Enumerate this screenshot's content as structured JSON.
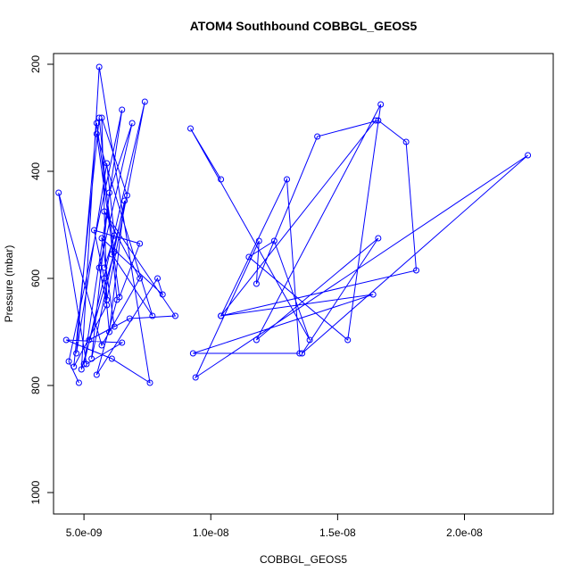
{
  "chart_data": {
    "type": "line",
    "title": "ATOM4 Southbound COBBGL_GEOS5",
    "xlabel": "COBBGL_GEOS5",
    "ylabel": "Pressure (mbar)",
    "xlim": [
      3.8e-09,
      2.35e-08
    ],
    "ylim": [
      1040,
      180
    ],
    "y_reversed": true,
    "x_ticks": [
      {
        "value": 5e-09,
        "label": "5.0e-09"
      },
      {
        "value": 1e-08,
        "label": "1.0e-08"
      },
      {
        "value": 1.5e-08,
        "label": "1.5e-08"
      },
      {
        "value": 2e-08,
        "label": "2.0e-08"
      }
    ],
    "y_ticks": [
      {
        "value": 200,
        "label": "200"
      },
      {
        "value": 400,
        "label": "400"
      },
      {
        "value": 600,
        "label": "600"
      },
      {
        "value": 800,
        "label": "800"
      },
      {
        "value": 1000,
        "label": "1000"
      }
    ],
    "series": [
      {
        "color": "#0000ff",
        "marker": "open-circle",
        "x": [
          4.8e-09,
          4.4e-09,
          6.5e-09,
          5e-09,
          7.4e-09,
          5.9e-09,
          5.7e-09,
          6.7e-09,
          6.1e-09,
          7.7e-09,
          5.5e-09,
          6.4e-09,
          7.2e-09,
          5.4e-09,
          5.8e-09,
          6e-09,
          6.6e-09,
          5.3e-09,
          6e-09,
          6.9e-09,
          5.6e-09,
          5.9e-09,
          4.6e-09,
          5.6e-09,
          6.3e-09,
          5.5e-09,
          7.9e-09,
          8.1e-09,
          5.7e-09,
          6.2e-09,
          5.2e-09,
          6.8e-09,
          8.6e-09,
          5.8e-09,
          7.2e-09,
          5.7e-09,
          4e-09,
          5.1e-09,
          6.5e-09,
          4.3e-09,
          6.1e-09,
          7.6e-09,
          5.6e-09,
          4.9e-09,
          6.2e-09,
          5.5e-09,
          4.7e-09,
          5.9e-09,
          6.2e-09,
          5.8e-09
        ],
        "y": [
          795,
          755,
          285,
          760,
          270,
          640,
          300,
          445,
          555,
          670,
          330,
          635,
          535,
          510,
          600,
          700,
          455,
          750,
          440,
          310,
          580,
          650,
          765,
          300,
          640,
          780,
          600,
          630,
          525,
          690,
          715,
          675,
          670,
          475,
          600,
          725,
          440,
          760,
          720,
          715,
          750,
          795,
          205,
          770,
          550,
          310,
          740,
          385,
          520,
          580
        ]
      },
      {
        "color": "#0000ff",
        "marker": "open-circle",
        "x": [
          1.04e-08,
          9.2e-09,
          1.39e-08,
          1.25e-08,
          1.15e-08,
          1.54e-08,
          1.67e-08,
          1.18e-08,
          1.66e-08,
          1.36e-08,
          2.25e-08,
          9.4e-09,
          1.19e-08,
          1.18e-08,
          1.42e-08,
          1.66e-08,
          1.77e-08,
          1.81e-08,
          1.04e-08,
          1.3e-08,
          1.35e-08,
          9.3e-09,
          1.64e-08,
          1.04e-08,
          1.65e-08
        ],
        "y": [
          415,
          320,
          715,
          530,
          560,
          715,
          275,
          715,
          525,
          740,
          370,
          785,
          530,
          610,
          335,
          305,
          345,
          585,
          670,
          415,
          740,
          740,
          630,
          670,
          305
        ]
      }
    ]
  }
}
